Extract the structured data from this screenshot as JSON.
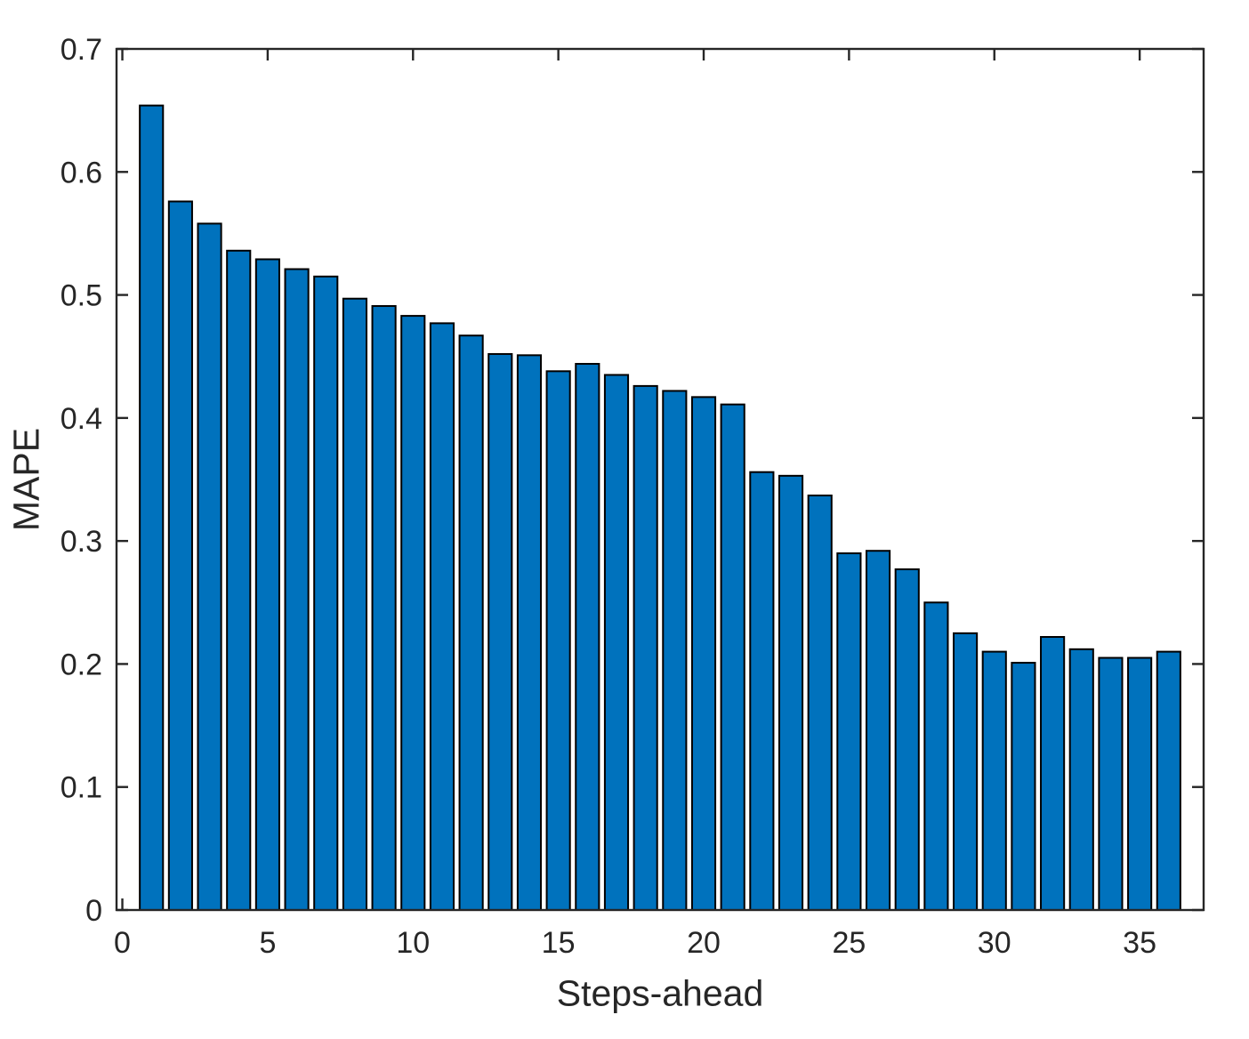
{
  "chart_data": {
    "type": "bar",
    "title": "",
    "xlabel": "Steps-ahead",
    "ylabel": "MAPE",
    "x": [
      1,
      2,
      3,
      4,
      5,
      6,
      7,
      8,
      9,
      10,
      11,
      12,
      13,
      14,
      15,
      16,
      17,
      18,
      19,
      20,
      21,
      22,
      23,
      24,
      25,
      26,
      27,
      28,
      29,
      30,
      31,
      32,
      33,
      34,
      35,
      36
    ],
    "series": [
      {
        "name": "MAPE",
        "values": [
          0.654,
          0.576,
          0.558,
          0.536,
          0.529,
          0.521,
          0.515,
          0.497,
          0.491,
          0.483,
          0.477,
          0.467,
          0.452,
          0.451,
          0.438,
          0.444,
          0.435,
          0.426,
          0.422,
          0.417,
          0.411,
          0.356,
          0.353,
          0.337,
          0.29,
          0.292,
          0.277,
          0.25,
          0.225,
          0.21,
          0.201,
          0.222,
          0.212,
          0.205,
          0.205,
          0.21
        ]
      }
    ],
    "xlim": [
      -0.2,
      37.2
    ],
    "ylim": [
      0,
      0.7
    ],
    "xticks": [
      0,
      5,
      10,
      15,
      20,
      25,
      30,
      35
    ],
    "xtick_labels": [
      "0",
      "5",
      "10",
      "15",
      "20",
      "25",
      "30",
      "35"
    ],
    "yticks": [
      0,
      0.1,
      0.2,
      0.3,
      0.4,
      0.5,
      0.6,
      0.7
    ],
    "ytick_labels": [
      "0",
      "0.1",
      "0.2",
      "0.3",
      "0.4",
      "0.5",
      "0.6",
      "0.7"
    ],
    "bar_width": 0.8,
    "bar_color": "#0072BD",
    "bar_edge_color": "#000000",
    "axis_color": "#262626",
    "background": "#FFFFFF",
    "grid": false,
    "legend": null
  }
}
